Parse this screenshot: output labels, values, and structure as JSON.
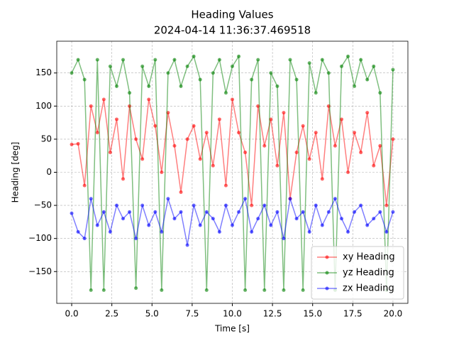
{
  "chart_data": {
    "type": "line",
    "title": "Heading Values",
    "subtitle": "2024-04-14 11:36:37.469518",
    "x_label": "Time [s]",
    "y_label": "Heading [deg]",
    "x": [
      0,
      0.4,
      0.8,
      1.2,
      1.6,
      2,
      2.4,
      2.8,
      3.2,
      3.6,
      4,
      4.4,
      4.8,
      5.2,
      5.6,
      6,
      6.4,
      6.8,
      7.2,
      7.6,
      8,
      8.4,
      8.8,
      9.2,
      9.6,
      10,
      10.4,
      10.8,
      11.2,
      11.6,
      12,
      12.4,
      12.8,
      13.2,
      13.6,
      14,
      14.4,
      14.8,
      15.2,
      15.6,
      16,
      16.4,
      16.8,
      17.2,
      17.6,
      18,
      18.4,
      18.8,
      19.2,
      19.6,
      20
    ],
    "series": [
      {
        "name": "xy Heading",
        "color": "#ff0000",
        "values": [
          42,
          43,
          -20,
          100,
          60,
          110,
          30,
          80,
          -10,
          100,
          50,
          20,
          110,
          70,
          0,
          90,
          40,
          -30,
          50,
          70,
          20,
          60,
          10,
          80,
          -20,
          110,
          60,
          30,
          -50,
          100,
          40,
          80,
          10,
          90,
          -40,
          30,
          70,
          20,
          60,
          -10,
          100,
          40,
          80,
          0,
          60,
          30,
          90,
          10,
          40,
          -50,
          50
        ]
      },
      {
        "name": "yz Heading",
        "color": "#008000",
        "values": [
          150,
          170,
          140,
          -178,
          170,
          -178,
          160,
          130,
          170,
          120,
          -175,
          160,
          130,
          170,
          -178,
          150,
          170,
          130,
          160,
          175,
          140,
          -178,
          150,
          170,
          120,
          160,
          175,
          -178,
          140,
          170,
          -178,
          150,
          130,
          -178,
          170,
          140,
          -178,
          165,
          120,
          170,
          150,
          -178,
          160,
          175,
          130,
          170,
          140,
          160,
          120,
          -178,
          155
        ]
      },
      {
        "name": "zx Heading",
        "color": "#0000ff",
        "values": [
          -62,
          -90,
          -100,
          -40,
          -80,
          -60,
          -90,
          -50,
          -70,
          -60,
          -100,
          -50,
          -80,
          -60,
          -90,
          -40,
          -70,
          -60,
          -110,
          -50,
          -80,
          -60,
          -70,
          -90,
          -50,
          -80,
          -60,
          -40,
          -90,
          -70,
          -50,
          -80,
          -60,
          -100,
          -40,
          -70,
          -60,
          -90,
          -50,
          -80,
          -60,
          -40,
          -70,
          -90,
          -60,
          -50,
          -80,
          -70,
          -60,
          -90,
          -60
        ]
      }
    ],
    "xlim": [
      -0.93,
      20.93
    ],
    "xticks": [
      {
        "value": 0,
        "label": "0.0"
      },
      {
        "value": 2.5,
        "label": "2.5"
      },
      {
        "value": 5,
        "label": "5.0"
      },
      {
        "value": 7.5,
        "label": "7.5"
      },
      {
        "value": 10,
        "label": "10.0"
      },
      {
        "value": 12.5,
        "label": "12.5"
      },
      {
        "value": 15,
        "label": "15.0"
      },
      {
        "value": 17.5,
        "label": "17.5"
      },
      {
        "value": 20,
        "label": "20.0"
      }
    ],
    "ylim": [
      -198,
      198
    ],
    "yticks": [
      {
        "value": -150,
        "label": "−150"
      },
      {
        "value": -100,
        "label": "−100"
      },
      {
        "value": -50,
        "label": "−50"
      },
      0,
      50,
      100,
      150
    ],
    "grid": true,
    "legend": "lower right"
  }
}
